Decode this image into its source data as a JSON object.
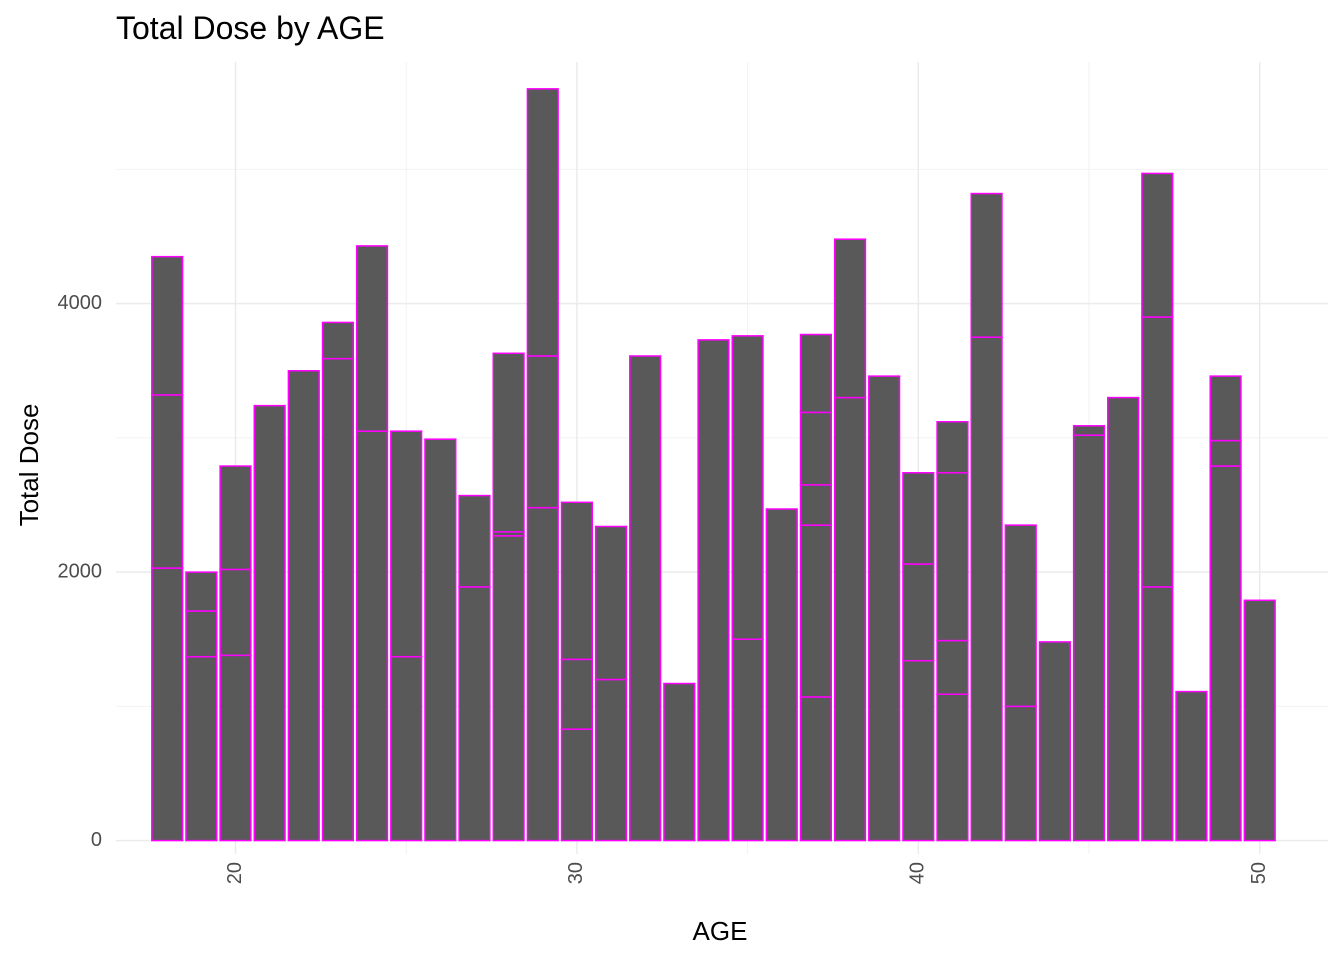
{
  "chart_data": {
    "type": "bar",
    "title": "Total Dose by AGE",
    "xlabel": "AGE",
    "ylabel": "Total Dose",
    "xlim": [
      16.5,
      52
    ],
    "ylim": [
      -100,
      5800
    ],
    "x_ticks": [
      20,
      30,
      40,
      50
    ],
    "y_ticks": [
      0,
      2000,
      4000
    ],
    "grid": true,
    "bar_fill": "#595959",
    "bar_outline": "#ff00ff",
    "bars": [
      {
        "age": 18,
        "segments": [
          2030,
          1290,
          1030
        ]
      },
      {
        "age": 19,
        "segments": [
          1370,
          340,
          290
        ]
      },
      {
        "age": 20,
        "segments": [
          1380,
          640,
          770
        ]
      },
      {
        "age": 21,
        "segments": [
          3240
        ]
      },
      {
        "age": 22,
        "segments": [
          3500
        ]
      },
      {
        "age": 23,
        "segments": [
          3590,
          270
        ]
      },
      {
        "age": 24,
        "segments": [
          3050,
          1380
        ]
      },
      {
        "age": 25,
        "segments": [
          1370,
          1680
        ]
      },
      {
        "age": 26,
        "segments": [
          2990
        ]
      },
      {
        "age": 27,
        "segments": [
          1890,
          680
        ]
      },
      {
        "age": 28,
        "segments": [
          2270,
          30,
          1330
        ]
      },
      {
        "age": 29,
        "segments": [
          2480,
          1130,
          1990
        ]
      },
      {
        "age": 30,
        "segments": [
          830,
          520,
          1170
        ]
      },
      {
        "age": 31,
        "segments": [
          1200,
          1140
        ]
      },
      {
        "age": 32,
        "segments": [
          3610
        ]
      },
      {
        "age": 33,
        "segments": [
          1170
        ]
      },
      {
        "age": 34,
        "segments": [
          3730
        ]
      },
      {
        "age": 35,
        "segments": [
          1500,
          2260
        ]
      },
      {
        "age": 36,
        "segments": [
          2470
        ]
      },
      {
        "age": 37,
        "segments": [
          1070,
          1280,
          300,
          540,
          580
        ]
      },
      {
        "age": 38,
        "segments": [
          3300,
          1180
        ]
      },
      {
        "age": 39,
        "segments": [
          3460
        ]
      },
      {
        "age": 40,
        "segments": [
          1340,
          720,
          680
        ]
      },
      {
        "age": 41,
        "segments": [
          1090,
          400,
          1250,
          380
        ]
      },
      {
        "age": 42,
        "segments": [
          3750,
          1070
        ]
      },
      {
        "age": 43,
        "segments": [
          1000,
          1350
        ]
      },
      {
        "age": 44,
        "segments": [
          1480
        ]
      },
      {
        "age": 45,
        "segments": [
          3020,
          70
        ]
      },
      {
        "age": 46,
        "segments": [
          3300
        ]
      },
      {
        "age": 47,
        "segments": [
          1890,
          2010,
          1070
        ]
      },
      {
        "age": 48,
        "segments": [
          1110
        ]
      },
      {
        "age": 49,
        "segments": [
          2790,
          190,
          480
        ]
      },
      {
        "age": 50,
        "segments": [
          1790
        ]
      }
    ]
  }
}
